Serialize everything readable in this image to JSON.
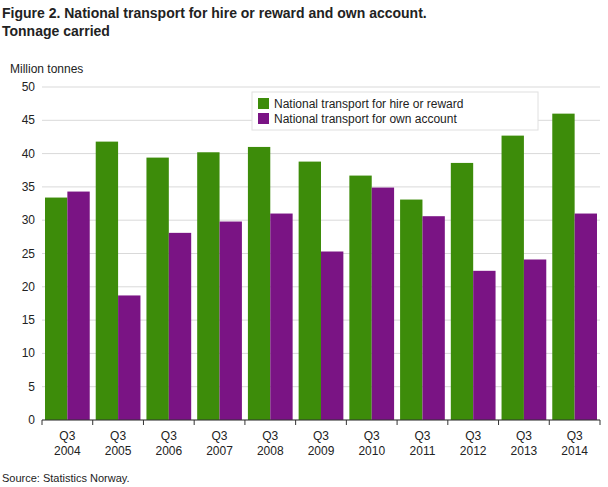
{
  "chart_data": {
    "type": "bar",
    "title": "Figure 2. National transport for hire or reward and own account.",
    "subtitle": "Tonnage carried",
    "y_label": "Million tonnes",
    "annotations": [
      "Source: Statistics Norway."
    ],
    "categories": [
      "Q3 2004",
      "Q3 2005",
      "Q3 2006",
      "Q3 2007",
      "Q3 2008",
      "Q3 2009",
      "Q3 2010",
      "Q3 2011",
      "Q3 2012",
      "Q3 2013",
      "Q3 2014"
    ],
    "series": [
      {
        "name": "National transport for hire or reward",
        "color": "#3d8c0a",
        "values": [
          33.4,
          41.8,
          39.4,
          40.2,
          41.0,
          38.8,
          36.7,
          33.1,
          38.6,
          42.7,
          46.0
        ]
      },
      {
        "name": "National transport for own account",
        "color": "#7a1484",
        "values": [
          34.3,
          18.7,
          28.1,
          29.8,
          31.0,
          25.3,
          34.9,
          30.6,
          22.4,
          24.1,
          31.0
        ]
      }
    ],
    "ylim": [
      0,
      50
    ],
    "yticks": [
      0,
      5,
      10,
      15,
      20,
      25,
      30,
      35,
      40,
      45,
      50
    ],
    "grid": true,
    "legend": "top-right"
  }
}
